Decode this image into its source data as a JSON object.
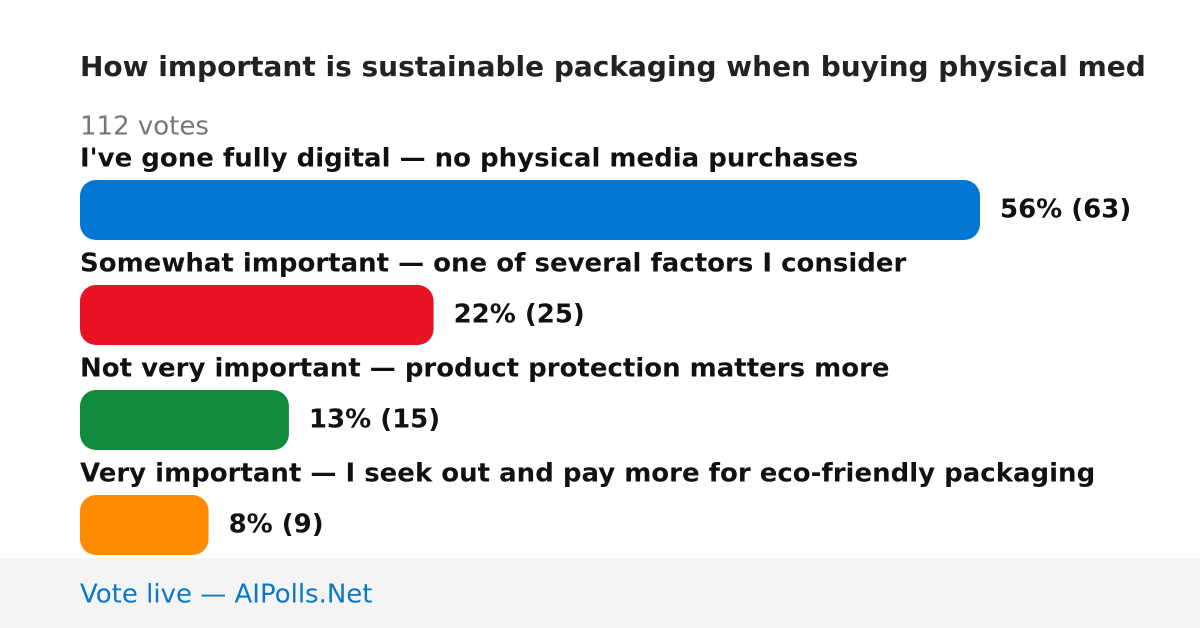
{
  "chart_data": {
    "type": "bar",
    "title": "How important is sustainable packaging when buying physical med",
    "subtitle": "112 votes",
    "categories": [
      "I've gone fully digital — no physical media purchases",
      "Somewhat important — one of several factors I consider",
      "Not very important — product protection matters more",
      "Very important — I seek out and pay more for eco-friendly packaging"
    ],
    "values": [
      56,
      22,
      13,
      8
    ],
    "value_labels": [
      "56% (63)",
      "22% (25)",
      "13% (15)",
      "8% (9)"
    ],
    "colors": [
      "#0277d4",
      "#e81224",
      "#108a3e",
      "#ff8c00"
    ],
    "footer": "Vote live — AIPolls.Net"
  }
}
